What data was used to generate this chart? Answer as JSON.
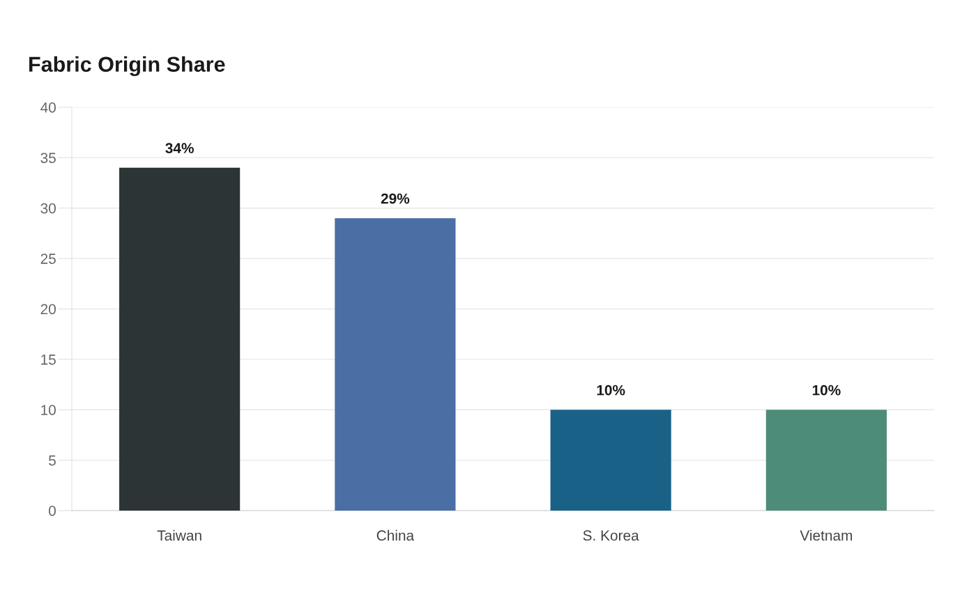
{
  "chart_data": {
    "type": "bar",
    "title": "Fabric Origin Share",
    "categories": [
      "Taiwan",
      "China",
      "S. Korea",
      "Vietnam"
    ],
    "values": [
      34,
      29,
      10,
      10
    ],
    "colors": [
      "#2d3436",
      "#4a6fa5",
      "#1a6188",
      "#4e8c7a"
    ],
    "value_labels": [
      "34%",
      "29%",
      "10%",
      "10%"
    ],
    "ylim": [
      0,
      40
    ],
    "yticks": [
      0,
      5,
      10,
      15,
      20,
      25,
      30,
      35,
      40
    ],
    "grid": "y",
    "legend": false
  }
}
